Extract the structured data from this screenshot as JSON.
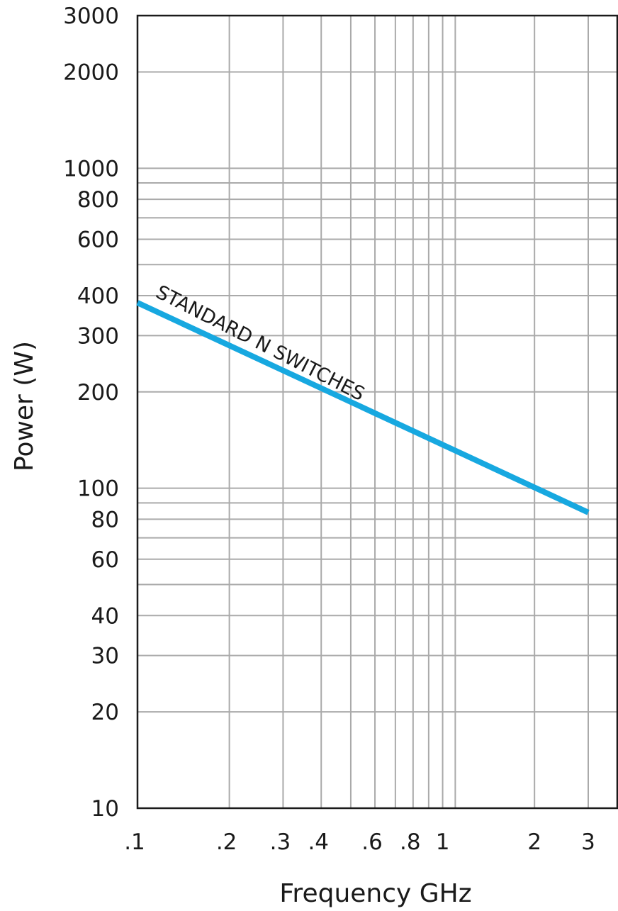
{
  "chart_data": {
    "type": "line",
    "title": "",
    "xlabel": "Frequency GHz",
    "ylabel": "Power (W)",
    "x_scale": "log",
    "y_scale": "log",
    "xlim": [
      0.1,
      3.0
    ],
    "ylim": [
      10,
      3000
    ],
    "grid": true,
    "x_gridlines": [
      0.1,
      0.2,
      0.3,
      0.4,
      0.5,
      0.6,
      0.7,
      0.8,
      0.9,
      1,
      1.1,
      2,
      3
    ],
    "y_gridlines": [
      10,
      20,
      30,
      40,
      50,
      60,
      70,
      80,
      90,
      100,
      200,
      300,
      400,
      500,
      600,
      700,
      800,
      900,
      1000,
      2000,
      3000
    ],
    "x_ticks": [
      {
        "value": 0.1,
        "label": ".1"
      },
      {
        "value": 0.2,
        "label": ".2"
      },
      {
        "value": 0.3,
        "label": ".3"
      },
      {
        "value": 0.4,
        "label": ".4"
      },
      {
        "value": 0.6,
        "label": ".6"
      },
      {
        "value": 0.8,
        "label": ".8"
      },
      {
        "value": 1,
        "label": "1"
      },
      {
        "value": 2,
        "label": "2"
      },
      {
        "value": 3,
        "label": "3"
      }
    ],
    "y_ticks": [
      {
        "value": 10,
        "label": "10"
      },
      {
        "value": 20,
        "label": "20"
      },
      {
        "value": 30,
        "label": "30"
      },
      {
        "value": 40,
        "label": "40"
      },
      {
        "value": 60,
        "label": "60"
      },
      {
        "value": 80,
        "label": "80"
      },
      {
        "value": 100,
        "label": "100"
      },
      {
        "value": 200,
        "label": "200"
      },
      {
        "value": 300,
        "label": "300"
      },
      {
        "value": 400,
        "label": "400"
      },
      {
        "value": 600,
        "label": "600"
      },
      {
        "value": 800,
        "label": "800"
      },
      {
        "value": 1000,
        "label": "1000"
      },
      {
        "value": 2000,
        "label": "2000"
      },
      {
        "value": 3000,
        "label": "3000"
      }
    ],
    "series": [
      {
        "name": "STANDARD N SWITCHES",
        "color": "#17a8e0",
        "x": [
          0.1,
          3.0
        ],
        "y": [
          380,
          84
        ]
      }
    ]
  }
}
